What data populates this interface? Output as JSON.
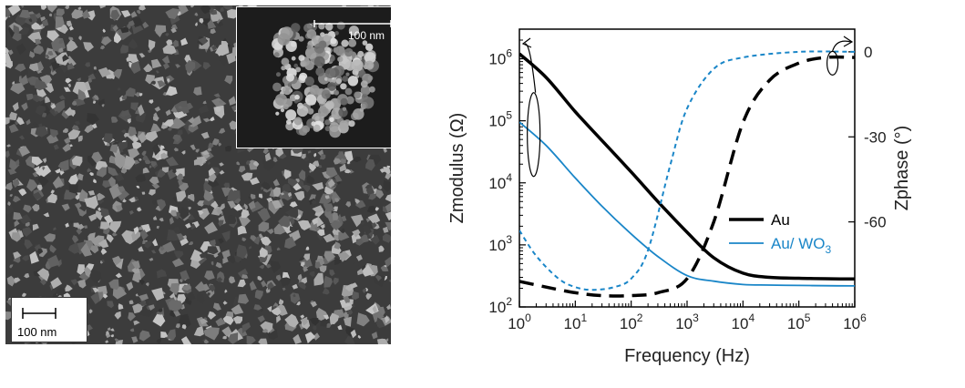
{
  "sem": {
    "scale_label": "100 nm",
    "inset_scale_label": "100 nm"
  },
  "chart_data": {
    "type": "line",
    "x_label": "Frequency (Hz)",
    "y_left_label": "Zmodulus (Ω)",
    "y_right_label": "Zphase (°)",
    "x_scale": "log",
    "x_range": [
      1,
      1000000
    ],
    "y_left_scale": "log",
    "y_left_range": [
      100,
      3000000
    ],
    "y_right_range": [
      -90,
      8
    ],
    "x_ticks": [
      {
        "value": 1,
        "base": "10",
        "exp": "0"
      },
      {
        "value": 10,
        "base": "10",
        "exp": "1"
      },
      {
        "value": 100,
        "base": "10",
        "exp": "2"
      },
      {
        "value": 1000,
        "base": "10",
        "exp": "3"
      },
      {
        "value": 10000,
        "base": "10",
        "exp": "4"
      },
      {
        "value": 100000,
        "base": "10",
        "exp": "5"
      },
      {
        "value": 1000000,
        "base": "10",
        "exp": "6"
      }
    ],
    "y_left_ticks": [
      {
        "value": 100,
        "base": "10",
        "exp": "2"
      },
      {
        "value": 1000,
        "base": "10",
        "exp": "3"
      },
      {
        "value": 10000,
        "base": "10",
        "exp": "4"
      },
      {
        "value": 100000,
        "base": "10",
        "exp": "5"
      },
      {
        "value": 1000000,
        "base": "10",
        "exp": "6"
      }
    ],
    "y_right_ticks": [
      {
        "value": 0,
        "label": "0"
      },
      {
        "value": -30,
        "label": "-30"
      },
      {
        "value": -60,
        "label": "-60"
      }
    ],
    "legend_position": "center-right",
    "series": [
      {
        "name": "Au",
        "legend_base": "Au",
        "legend_sub": "",
        "color": "#000000",
        "modulus": {
          "x": [
            1,
            3,
            10,
            30,
            100,
            300,
            1000,
            3000,
            10000,
            30000,
            100000,
            300000,
            1000000
          ],
          "y": [
            1200000,
            500000,
            140000,
            48000,
            15000,
            5000,
            1600,
            620,
            350,
            300,
            290,
            285,
            282
          ]
        },
        "phase": {
          "x": [
            1,
            3,
            10,
            30,
            100,
            300,
            1000,
            3000,
            10000,
            30000,
            100000,
            300000,
            1000000
          ],
          "y": [
            -81,
            -83,
            -85,
            -86,
            -86,
            -85,
            -80,
            -60,
            -25,
            -10,
            -4,
            -2,
            -2
          ]
        }
      },
      {
        "name": "Au/ WO3",
        "legend_base": "Au/ WO",
        "legend_sub": "3",
        "color": "#1a86c8",
        "modulus": {
          "x": [
            1,
            3,
            10,
            30,
            100,
            300,
            1000,
            3000,
            10000,
            30000,
            100000,
            300000,
            1000000
          ],
          "y": [
            95000,
            40000,
            12000,
            4200,
            1500,
            650,
            320,
            260,
            230,
            225,
            222,
            220,
            218
          ]
        },
        "phase": {
          "x": [
            1,
            2,
            5,
            10,
            20,
            50,
            100,
            200,
            500,
            1000,
            3000,
            10000,
            100000,
            1000000
          ],
          "y": [
            -63,
            -72,
            -80,
            -83,
            -84,
            -83,
            -80,
            -70,
            -40,
            -20,
            -6,
            -2,
            0,
            0
          ]
        }
      }
    ]
  }
}
